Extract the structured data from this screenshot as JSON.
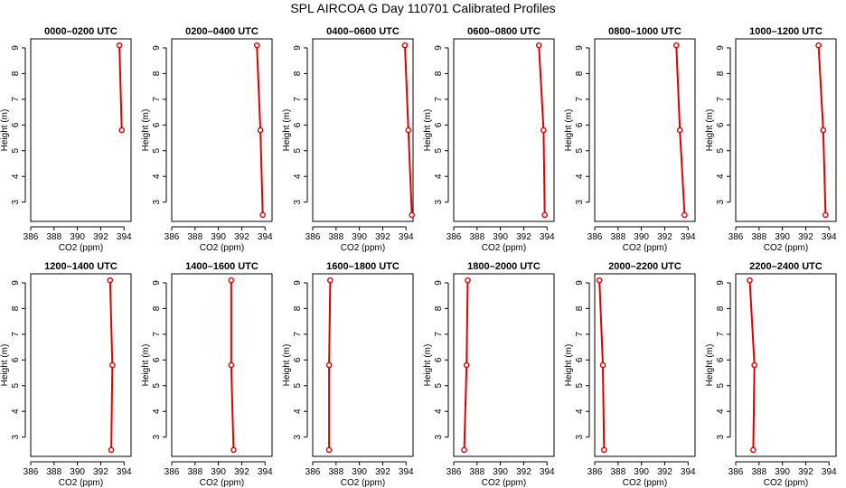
{
  "page": {
    "title": "SPL AIRCOA G  Day 110701  Calibrated Profiles"
  },
  "colors": {
    "line": "#dd0000",
    "marker": "#dd0000",
    "frame": "#000000"
  },
  "chart_data": [
    {
      "type": "line",
      "title": "0000–0200 UTC",
      "xlabel": "CO2 (ppm)",
      "ylabel": "Height (m)",
      "xlim": [
        386,
        394.6
      ],
      "ylim": [
        2.25,
        9.35
      ],
      "xticks": [
        "386",
        "388",
        "390",
        "392",
        "394"
      ],
      "yticks": [
        "3",
        "4",
        "5",
        "6",
        "7",
        "8",
        "9"
      ],
      "grid": false,
      "series": [
        {
          "x": [
            393.6,
            393.8
          ],
          "y": [
            9.1,
            5.8
          ]
        }
      ]
    },
    {
      "type": "line",
      "title": "0200–0400 UTC",
      "xlabel": "CO2 (ppm)",
      "ylabel": "Height (m)",
      "xlim": [
        386,
        394.6
      ],
      "ylim": [
        2.25,
        9.35
      ],
      "xticks": [
        "386",
        "388",
        "390",
        "392",
        "394"
      ],
      "yticks": [
        "3",
        "4",
        "5",
        "6",
        "7",
        "8",
        "9"
      ],
      "grid": false,
      "series": [
        {
          "x": [
            393.3,
            393.6,
            393.8
          ],
          "y": [
            9.1,
            5.8,
            2.5
          ]
        }
      ]
    },
    {
      "type": "line",
      "title": "0400–0600 UTC",
      "xlabel": "CO2 (ppm)",
      "ylabel": "Height (m)",
      "xlim": [
        386,
        394.6
      ],
      "ylim": [
        2.25,
        9.35
      ],
      "xticks": [
        "386",
        "388",
        "390",
        "392",
        "394"
      ],
      "yticks": [
        "3",
        "4",
        "5",
        "6",
        "7",
        "8",
        "9"
      ],
      "grid": false,
      "series": [
        {
          "x": [
            393.9,
            394.2,
            394.5
          ],
          "y": [
            9.1,
            5.8,
            2.5
          ]
        }
      ]
    },
    {
      "type": "line",
      "title": "0600–0800 UTC",
      "xlabel": "CO2 (ppm)",
      "ylabel": "Height (m)",
      "xlim": [
        386,
        394.6
      ],
      "ylim": [
        2.25,
        9.35
      ],
      "xticks": [
        "386",
        "388",
        "390",
        "392",
        "394"
      ],
      "yticks": [
        "3",
        "4",
        "5",
        "6",
        "7",
        "8",
        "9"
      ],
      "grid": false,
      "series": [
        {
          "x": [
            393.3,
            393.7,
            393.8
          ],
          "y": [
            9.1,
            5.8,
            2.5
          ]
        }
      ]
    },
    {
      "type": "line",
      "title": "0800–1000 UTC",
      "xlabel": "CO2 (ppm)",
      "ylabel": "Height (m)",
      "xlim": [
        386,
        394.6
      ],
      "ylim": [
        2.25,
        9.35
      ],
      "xticks": [
        "386",
        "388",
        "390",
        "392",
        "394"
      ],
      "yticks": [
        "3",
        "4",
        "5",
        "6",
        "7",
        "8",
        "9"
      ],
      "grid": false,
      "series": [
        {
          "x": [
            393.0,
            393.3,
            393.7
          ],
          "y": [
            9.1,
            5.8,
            2.5
          ]
        }
      ]
    },
    {
      "type": "line",
      "title": "1000–1200 UTC",
      "xlabel": "CO2 (ppm)",
      "ylabel": "Height (m)",
      "xlim": [
        386,
        394.6
      ],
      "ylim": [
        2.25,
        9.35
      ],
      "xticks": [
        "386",
        "388",
        "390",
        "392",
        "394"
      ],
      "yticks": [
        "3",
        "4",
        "5",
        "6",
        "7",
        "8",
        "9"
      ],
      "grid": false,
      "series": [
        {
          "x": [
            393.1,
            393.5,
            393.7
          ],
          "y": [
            9.1,
            5.8,
            2.5
          ]
        }
      ]
    },
    {
      "type": "line",
      "title": "1200–1400 UTC",
      "xlabel": "CO2 (ppm)",
      "ylabel": "Height (m)",
      "xlim": [
        386,
        394.6
      ],
      "ylim": [
        2.25,
        9.35
      ],
      "xticks": [
        "386",
        "388",
        "390",
        "392",
        "394"
      ],
      "yticks": [
        "3",
        "4",
        "5",
        "6",
        "7",
        "8",
        "9"
      ],
      "grid": false,
      "series": [
        {
          "x": [
            392.8,
            393.0,
            392.9
          ],
          "y": [
            9.1,
            5.8,
            2.5
          ]
        }
      ]
    },
    {
      "type": "line",
      "title": "1400–1600 UTC",
      "xlabel": "CO2 (ppm)",
      "ylabel": "Height (m)",
      "xlim": [
        386,
        394.6
      ],
      "ylim": [
        2.25,
        9.35
      ],
      "xticks": [
        "386",
        "388",
        "390",
        "392",
        "394"
      ],
      "yticks": [
        "3",
        "4",
        "5",
        "6",
        "7",
        "8",
        "9"
      ],
      "grid": false,
      "series": [
        {
          "x": [
            391.1,
            391.1,
            391.3
          ],
          "y": [
            9.1,
            5.8,
            2.5
          ]
        }
      ]
    },
    {
      "type": "line",
      "title": "1600–1800 UTC",
      "xlabel": "CO2 (ppm)",
      "ylabel": "Height (m)",
      "xlim": [
        386,
        394.6
      ],
      "ylim": [
        2.25,
        9.35
      ],
      "xticks": [
        "386",
        "388",
        "390",
        "392",
        "394"
      ],
      "yticks": [
        "3",
        "4",
        "5",
        "6",
        "7",
        "8",
        "9"
      ],
      "grid": false,
      "series": [
        {
          "x": [
            387.5,
            387.4,
            387.4
          ],
          "y": [
            9.1,
            5.8,
            2.5
          ]
        }
      ]
    },
    {
      "type": "line",
      "title": "1800–2000 UTC",
      "xlabel": "CO2 (ppm)",
      "ylabel": "Height (m)",
      "xlim": [
        386,
        394.6
      ],
      "ylim": [
        2.25,
        9.35
      ],
      "xticks": [
        "386",
        "388",
        "390",
        "392",
        "394"
      ],
      "yticks": [
        "3",
        "4",
        "5",
        "6",
        "7",
        "8",
        "9"
      ],
      "grid": false,
      "series": [
        {
          "x": [
            387.2,
            387.1,
            386.9
          ],
          "y": [
            9.1,
            5.8,
            2.5
          ]
        }
      ]
    },
    {
      "type": "line",
      "title": "2000–2200 UTC",
      "xlabel": "CO2 (ppm)",
      "ylabel": "Height (m)",
      "xlim": [
        386,
        394.6
      ],
      "ylim": [
        2.25,
        9.35
      ],
      "xticks": [
        "386",
        "388",
        "390",
        "392",
        "394"
      ],
      "yticks": [
        "3",
        "4",
        "5",
        "6",
        "7",
        "8",
        "9"
      ],
      "grid": false,
      "series": [
        {
          "x": [
            386.4,
            386.7,
            386.8
          ],
          "y": [
            9.1,
            5.8,
            2.5
          ]
        }
      ]
    },
    {
      "type": "line",
      "title": "2200–2400 UTC",
      "xlabel": "CO2 (ppm)",
      "ylabel": "Height (m)",
      "xlim": [
        386,
        394.6
      ],
      "ylim": [
        2.25,
        9.35
      ],
      "xticks": [
        "386",
        "388",
        "390",
        "392",
        "394"
      ],
      "yticks": [
        "3",
        "4",
        "5",
        "6",
        "7",
        "8",
        "9"
      ],
      "grid": false,
      "series": [
        {
          "x": [
            387.2,
            387.6,
            387.5
          ],
          "y": [
            9.1,
            5.8,
            2.5
          ]
        }
      ]
    }
  ]
}
